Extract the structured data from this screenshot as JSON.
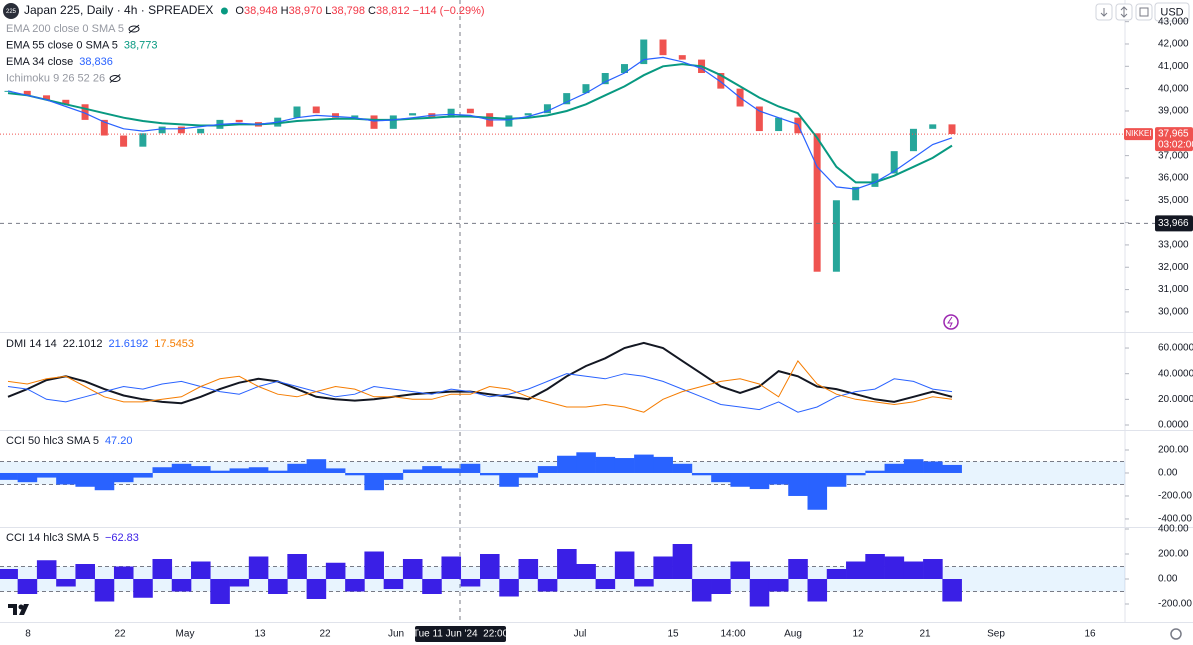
{
  "header": {
    "icon": "225",
    "title": "Japan 225, Daily · 4h · SPREADEX",
    "ohlc": [
      {
        "label": "O",
        "value": "38,948"
      },
      {
        "label": "H",
        "value": "38,970"
      },
      {
        "label": "L",
        "value": "38,798"
      },
      {
        "label": "C",
        "value": "38,812"
      }
    ],
    "change": "−114 (−0.29%)"
  },
  "toolbar": {
    "currency": "USD"
  },
  "price_pane": {
    "legends": [
      {
        "name": "EMA 200 close 0 SMA 5",
        "hidden": true
      },
      {
        "name": "EMA 55 close 0 SMA 5",
        "value": "38,773",
        "color": "#089981"
      },
      {
        "name": "EMA 34 close",
        "value": "38,836",
        "color": "#2962ff"
      },
      {
        "name": "Ichimoku 9 26 52 26",
        "hidden": true
      }
    ],
    "ylim": [
      29100,
      43970
    ],
    "yticks": [
      {
        "value": 30000,
        "label": "30,000"
      },
      {
        "value": 31000,
        "label": "31,000"
      },
      {
        "value": 32000,
        "label": "32,000"
      },
      {
        "value": 33000,
        "label": "33,000"
      },
      {
        "value": 34000,
        "label": "34,000"
      },
      {
        "value": 35000,
        "label": "35,000"
      },
      {
        "value": 36000,
        "label": "36,000"
      },
      {
        "value": 37000,
        "label": "37,000"
      },
      {
        "value": 38000,
        "label": "38,000"
      },
      {
        "value": 39000,
        "label": "39,000"
      },
      {
        "value": 40000,
        "label": "40,000"
      },
      {
        "value": 41000,
        "label": "41,000"
      },
      {
        "value": 42000,
        "label": "42,000"
      },
      {
        "value": 43000,
        "label": "43,000"
      }
    ],
    "up_color": "#26a69a",
    "down_color": "#ef5350",
    "closes": [
      39900,
      39700,
      39500,
      39300,
      38600,
      37900,
      37400,
      38000,
      38300,
      38000,
      38200,
      38600,
      38500,
      38300,
      38700,
      39200,
      38900,
      38700,
      38800,
      38200,
      38800,
      38900,
      38700,
      39100,
      38900,
      38300,
      38800,
      38900,
      39300,
      39800,
      40200,
      40700,
      41100,
      42200,
      41500,
      41300,
      40700,
      40000,
      39200,
      38100,
      38700,
      38000,
      31800,
      35000,
      35600,
      36200,
      37200,
      38200,
      38400,
      37965
    ],
    "ema55": {
      "color": "#089981",
      "values": [
        39800,
        39700,
        39500,
        39300,
        39100,
        38900,
        38700,
        38550,
        38450,
        38400,
        38350,
        38350,
        38400,
        38400,
        38450,
        38550,
        38600,
        38650,
        38650,
        38600,
        38600,
        38650,
        38700,
        38750,
        38750,
        38700,
        38650,
        38700,
        38800,
        39000,
        39300,
        39700,
        40100,
        40600,
        41000,
        41100,
        41000,
        40600,
        40100,
        39600,
        39200,
        38900,
        37800,
        36500,
        35800,
        35800,
        36100,
        36500,
        36900,
        37450
      ]
    },
    "ema34": {
      "color": "#2962ff",
      "values": [
        39900,
        39700,
        39500,
        39200,
        38900,
        38500,
        38200,
        38100,
        38200,
        38200,
        38300,
        38400,
        38450,
        38400,
        38500,
        38700,
        38800,
        38750,
        38700,
        38550,
        38600,
        38700,
        38800,
        38850,
        38800,
        38600,
        38600,
        38750,
        39000,
        39400,
        39800,
        40300,
        40700,
        41300,
        41400,
        41200,
        40900,
        40300,
        39600,
        39000,
        38700,
        38400,
        36500,
        35600,
        35500,
        35800,
        36300,
        36900,
        37500,
        37800
      ]
    },
    "last_price": {
      "value": 37965,
      "label": "37,965",
      "symbol": "NIKKEI",
      "countdown": "03:02:00"
    },
    "crosshair": {
      "value": 33966,
      "label": "33,966"
    }
  },
  "dmi_pane": {
    "legend": {
      "name": "DMI 14 14",
      "values": [
        {
          "text": "22.1012",
          "color": "#131722"
        },
        {
          "text": "21.6192",
          "color": "#2962ff"
        },
        {
          "text": "17.5453",
          "color": "#f57c00"
        }
      ]
    },
    "ylim": [
      -3.9,
      72.5
    ],
    "yticks": [
      {
        "value": 0,
        "label": "0.0000"
      },
      {
        "value": 20,
        "label": "20.0000"
      },
      {
        "value": 40,
        "label": "40.0000"
      },
      {
        "value": 60,
        "label": "60.0000"
      }
    ],
    "series": [
      {
        "color": "#131722",
        "values": [
          22,
          28,
          35,
          38,
          34,
          28,
          23,
          20,
          18,
          17,
          22,
          28,
          33,
          36,
          34,
          28,
          22,
          20,
          19,
          20,
          22,
          24,
          25,
          26,
          26,
          24,
          22,
          20,
          28,
          38,
          46,
          52,
          60,
          64,
          60,
          50,
          40,
          30,
          25,
          30,
          42,
          38,
          30,
          28,
          24,
          20,
          18,
          22,
          26,
          22
        ]
      },
      {
        "color": "#2962ff",
        "values": [
          30,
          28,
          20,
          18,
          22,
          26,
          30,
          28,
          32,
          34,
          30,
          26,
          24,
          30,
          34,
          30,
          26,
          22,
          24,
          30,
          28,
          26,
          24,
          28,
          26,
          22,
          24,
          28,
          34,
          40,
          38,
          36,
          40,
          38,
          34,
          28,
          22,
          16,
          14,
          12,
          18,
          10,
          14,
          22,
          26,
          28,
          36,
          34,
          28,
          26
        ]
      },
      {
        "color": "#f57c00",
        "values": [
          34,
          32,
          36,
          38,
          30,
          22,
          18,
          18,
          20,
          22,
          30,
          36,
          38,
          30,
          24,
          22,
          26,
          30,
          28,
          22,
          22,
          20,
          20,
          24,
          24,
          30,
          28,
          22,
          18,
          14,
          14,
          16,
          14,
          10,
          20,
          26,
          30,
          34,
          36,
          32,
          22,
          50,
          32,
          24,
          20,
          18,
          16,
          18,
          22,
          20
        ]
      }
    ]
  },
  "cci50_pane": {
    "legend": {
      "name": "CCI 50 hlc3 SMA 5",
      "value": "47.20"
    },
    "ylim": [
      -470,
      374
    ],
    "yticks": [
      {
        "value": -400,
        "label": "-400.00"
      },
      {
        "value": -200,
        "label": "-200.00"
      },
      {
        "value": 0,
        "label": "0.00"
      },
      {
        "value": 200,
        "label": "200.00"
      }
    ],
    "band": [
      -100,
      100
    ],
    "color": "#2962ff",
    "values": [
      -60,
      -80,
      -40,
      -100,
      -120,
      -150,
      -80,
      -40,
      50,
      80,
      60,
      20,
      40,
      50,
      20,
      80,
      120,
      40,
      -20,
      -150,
      -60,
      30,
      60,
      40,
      80,
      -20,
      -120,
      -40,
      60,
      150,
      180,
      140,
      130,
      160,
      140,
      80,
      -20,
      -80,
      -120,
      -140,
      -100,
      -200,
      -320,
      -120,
      -20,
      20,
      80,
      120,
      100,
      70
    ]
  },
  "cci14_pane": {
    "legend": {
      "name": "CCI 14 hlc3 SMA 5",
      "value": "−62.83"
    },
    "ylim": [
      -344,
      416
    ],
    "yticks": [
      {
        "value": -200,
        "label": "-200.00"
      },
      {
        "value": 0,
        "label": "0.00"
      },
      {
        "value": 200,
        "label": "200.00"
      },
      {
        "value": 400,
        "label": "400.00"
      }
    ],
    "band": [
      -100,
      100
    ],
    "color": "#3a1fe6",
    "values": [
      80,
      -120,
      150,
      -60,
      120,
      -180,
      100,
      -150,
      160,
      -100,
      140,
      -200,
      -60,
      180,
      -120,
      200,
      -160,
      130,
      -100,
      220,
      -80,
      160,
      -120,
      180,
      -60,
      200,
      -140,
      160,
      -100,
      240,
      120,
      -80,
      220,
      -60,
      180,
      280,
      -180,
      -120,
      140,
      -220,
      -100,
      160,
      -180,
      80,
      140,
      200,
      180,
      140,
      160,
      -180
    ]
  },
  "time_axis": {
    "labels": [
      "8",
      "22",
      "May",
      "13",
      "22",
      "Jun",
      "Jul",
      "15",
      "14:00",
      "Aug",
      "12",
      "21",
      "Sep",
      "16"
    ],
    "crosshair_label": "Tue 11 Jun '24  22:00"
  }
}
